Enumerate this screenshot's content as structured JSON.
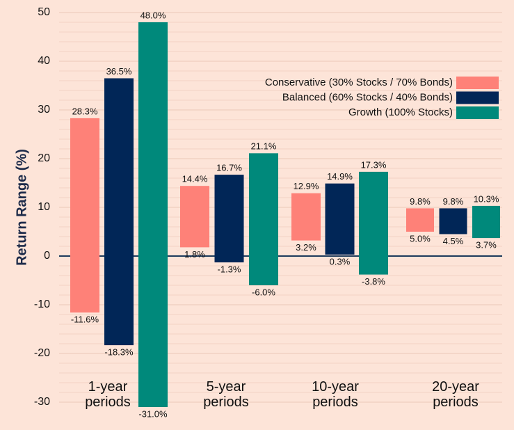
{
  "chart_data": {
    "type": "floating-bar",
    "y_label": "Return Range (%)",
    "categories": [
      "1-year periods",
      "5-year periods",
      "10-year periods",
      "20-year periods"
    ],
    "series": [
      {
        "name": "Conservative (30% Stocks / 70% Bonds)",
        "color": "#fe8178",
        "values": [
          [
            -11.6,
            28.3
          ],
          [
            1.8,
            14.4
          ],
          [
            3.2,
            12.9
          ],
          [
            5.0,
            9.8
          ]
        ],
        "value_labels": [
          [
            "-11.6%",
            "28.3%"
          ],
          [
            "1.8%",
            "14.4%"
          ],
          [
            "3.2%",
            "12.9%"
          ],
          [
            "5.0%",
            "9.8%"
          ]
        ]
      },
      {
        "name": "Balanced (60% Stocks / 40% Bonds)",
        "color": "#012657",
        "values": [
          [
            -18.3,
            36.5
          ],
          [
            -1.3,
            16.7
          ],
          [
            0.3,
            14.9
          ],
          [
            4.5,
            9.8
          ]
        ],
        "value_labels": [
          [
            "-18.3%",
            "36.5%"
          ],
          [
            "-1.3%",
            "16.7%"
          ],
          [
            "0.3%",
            "14.9%"
          ],
          [
            "4.5%",
            "9.8%"
          ]
        ]
      },
      {
        "name": "Growth (100% Stocks)",
        "color": "#00897b",
        "values": [
          [
            -31.0,
            48.0
          ],
          [
            -6.0,
            21.1
          ],
          [
            -3.8,
            17.3
          ],
          [
            3.7,
            10.3
          ]
        ],
        "value_labels": [
          [
            "-31.0%",
            "48.0%"
          ],
          [
            "-6.0%",
            "21.1%"
          ],
          [
            "-3.8%",
            "17.3%"
          ],
          [
            "3.7%",
            "10.3%"
          ]
        ]
      }
    ],
    "ylim": [
      -30,
      50
    ],
    "yticks": [
      -30,
      -20,
      -10,
      0,
      10,
      20,
      30,
      40,
      50
    ],
    "grid": true,
    "legend": "upper right"
  }
}
